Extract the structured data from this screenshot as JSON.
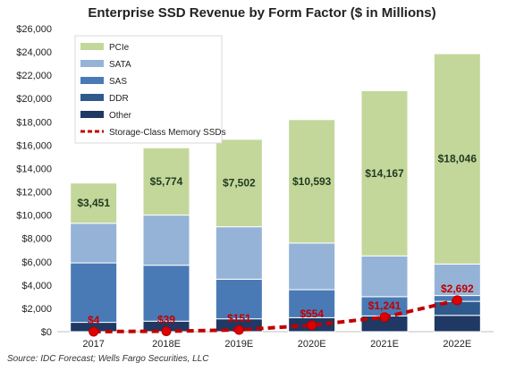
{
  "chart_data": {
    "type": "bar",
    "stacked": true,
    "title": "Enterprise  SSD Revenue by Form Factor ($ in Millions)",
    "xlabel": "",
    "ylabel": "",
    "categories": [
      "2017",
      "2018E",
      "2019E",
      "2020E",
      "2021E",
      "2022E"
    ],
    "ylim": [
      0,
      26000
    ],
    "ytick_values": [
      0,
      2000,
      4000,
      6000,
      8000,
      10000,
      12000,
      14000,
      16000,
      18000,
      20000,
      22000,
      24000,
      26000
    ],
    "ytick_labels": [
      "$0",
      "$2,000",
      "$4,000",
      "$6,000",
      "$8,000",
      "$10,000",
      "$12,000",
      "$14,000",
      "$16,000",
      "$18,000",
      "$20,000",
      "$22,000",
      "$24,000",
      "$26,000"
    ],
    "grid": false,
    "legend_position": "top-left",
    "series": [
      {
        "name": "Other",
        "color": "#1f3864",
        "values": [
          800,
          900,
          1100,
          1200,
          1350,
          1400
        ]
      },
      {
        "name": "DDR",
        "color": "#2e5a8c",
        "values": [
          0,
          0,
          0,
          0,
          0,
          1200
        ]
      },
      {
        "name": "SAS",
        "color": "#4a7ab5",
        "values": [
          5100,
          4800,
          3400,
          2400,
          1650,
          500
        ]
      },
      {
        "name": "SATA",
        "color": "#95b3d7",
        "values": [
          3400,
          4300,
          4500,
          4000,
          3500,
          2700
        ]
      },
      {
        "name": "PCIe",
        "color": "#c4d79b",
        "values": [
          3451,
          5774,
          7502,
          10593,
          14167,
          18046
        ]
      }
    ],
    "pcie_labels": [
      "$3,451",
      "$5,774",
      "$7,502",
      "$10,593",
      "$14,167",
      "$18,046"
    ],
    "line_series": {
      "name": "Storage-Class Memory SSDs",
      "color": "#c00000",
      "style": "dashed",
      "values": [
        4,
        39,
        151,
        554,
        1241,
        2692
      ],
      "labels": [
        "$4",
        "$39",
        "$151",
        "$554",
        "$1,241",
        "$2,692"
      ]
    },
    "legend_entries": [
      "PCIe",
      "SATA",
      "SAS",
      "DDR",
      "Other",
      "Storage-Class Memory SSDs"
    ]
  },
  "source": "Source: IDC Forecast; Wells Fargo Securities, LLC"
}
